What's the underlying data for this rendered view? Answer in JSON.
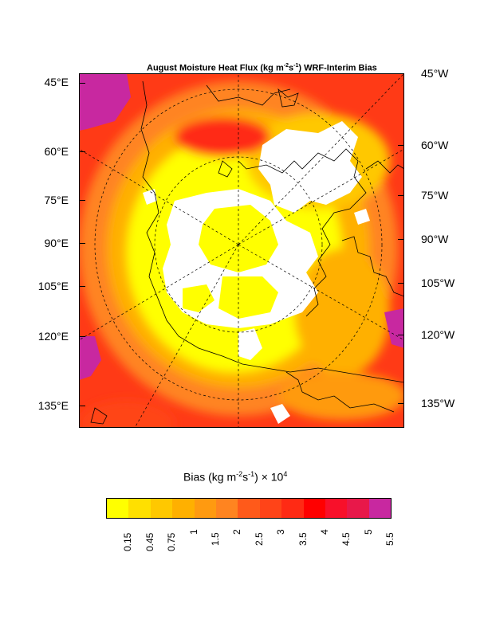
{
  "title": {
    "prefix": "August Moisture Heat Flux (kg m",
    "sup1": "-2",
    "mid": "s",
    "sup2": "-1",
    "suffix": ") WRF-Interim Bias"
  },
  "left_labels": [
    "45°E",
    "60°E",
    "75°E",
    "90°E",
    "105°E",
    "120°E",
    "135°E"
  ],
  "right_labels": [
    "45°W",
    "60°W",
    "75°W",
    "90°W",
    "105°W",
    "120°W",
    "135°W"
  ],
  "colorbar": {
    "title_prefix": "Bias (kg m",
    "title_sup1": "-2",
    "title_mid": "s",
    "title_sup2": "-1",
    "title_suffix": ") × 10",
    "title_sup3": "4",
    "levels": [
      "0.15",
      "0.45",
      "0.75",
      "1",
      "1.5",
      "2",
      "2.5",
      "3",
      "3.5",
      "4",
      "4.5",
      "5",
      "5.5"
    ],
    "colors": [
      "#ffff00",
      "#ffe000",
      "#ffc800",
      "#ffb000",
      "#ff9a10",
      "#ff8420",
      "#ff5a1a",
      "#ff4418",
      "#ff2a14",
      "#ff0000",
      "#f8102a",
      "#e8184a",
      "#c828a0"
    ]
  },
  "map": {
    "palette": {
      "no_bias": "#ffffff",
      "yellow": "#ffff00",
      "orange": "#ffb000",
      "red": "#ff3a16",
      "magenta": "#c828a0"
    }
  }
}
